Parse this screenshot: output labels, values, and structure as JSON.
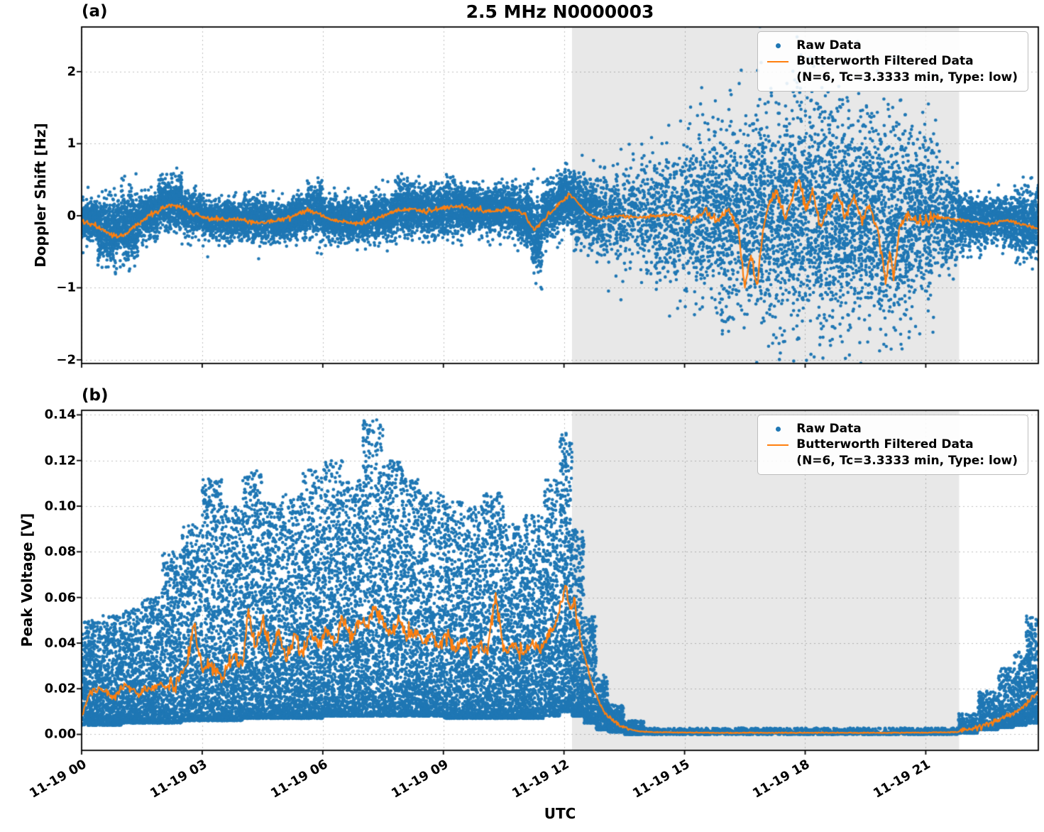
{
  "figure": {
    "title": "2.5 MHz N0000003",
    "panel_a_label": "(a)",
    "panel_b_label": "(b)",
    "x_label": "UTC"
  },
  "legend": {
    "raw_label": "Raw Data",
    "filtered_label": "Butterworth Filtered Data",
    "filtered_sublabel": "(N=6, Tc=3.3333 min, Type: low)"
  },
  "colors": {
    "raw": "#1f77b4",
    "filtered": "#ff7f0e",
    "shade": "#e8e8e8",
    "axes": "#000000"
  },
  "shaded_region": {
    "t_start": 12.2,
    "t_end": 21.83,
    "color": "#e8e8e8"
  },
  "x_axis": {
    "label": "UTC",
    "xlim": [
      0,
      23.8
    ],
    "ticks": [
      0,
      3,
      6,
      9,
      12,
      15,
      18,
      21
    ],
    "tick_labels": [
      "11-19 00",
      "11-19 03",
      "11-19 06",
      "11-19 09",
      "11-19 12",
      "11-19 15",
      "11-19 18",
      "11-19 21"
    ]
  },
  "chart_data": [
    {
      "id": "doppler_shift",
      "type": "scatter",
      "panel": "a",
      "ylabel": "Doppler Shift [Hz]",
      "ylim": [
        -2.05,
        2.62
      ],
      "yticks": [
        -2,
        -1,
        0,
        1,
        2
      ],
      "ytick_labels": [
        "−2",
        "−1",
        "0",
        "1",
        "2"
      ],
      "series": [
        {
          "name": "Raw Data",
          "style": "scatter"
        },
        {
          "name": "Butterworth Filtered Data (N=6, Tc=3.3333 min, Type: low)",
          "style": "line"
        }
      ],
      "raw_distribution": "normal",
      "raw_point_segments": [
        [
          0,
          0.4,
          -0.05,
          0.13,
          400
        ],
        [
          0.4,
          0.9,
          -0.2,
          0.22,
          450
        ],
        [
          0.9,
          1.4,
          -0.15,
          0.25,
          450
        ],
        [
          1.4,
          1.9,
          0,
          0.15,
          400
        ],
        [
          1.9,
          2.5,
          0.18,
          0.18,
          500
        ],
        [
          2.5,
          3,
          0.03,
          0.13,
          400
        ],
        [
          3,
          4,
          -0.05,
          0.13,
          700
        ],
        [
          4,
          4.6,
          -0.05,
          0.15,
          450
        ],
        [
          4.6,
          5.2,
          -0.08,
          0.13,
          450
        ],
        [
          5.2,
          5.6,
          0,
          0.13,
          320
        ],
        [
          5.6,
          6,
          0.08,
          0.17,
          320
        ],
        [
          6,
          6.6,
          -0.05,
          0.14,
          450
        ],
        [
          6.6,
          7.2,
          -0.08,
          0.15,
          450
        ],
        [
          7.2,
          7.8,
          0,
          0.16,
          450
        ],
        [
          7.8,
          8.4,
          0.1,
          0.18,
          500
        ],
        [
          8.4,
          9,
          0.08,
          0.17,
          500
        ],
        [
          9,
          9.6,
          0.12,
          0.17,
          500
        ],
        [
          9.6,
          10.2,
          0.08,
          0.16,
          500
        ],
        [
          10.2,
          10.8,
          0.1,
          0.16,
          500
        ],
        [
          10.8,
          11.2,
          0,
          0.19,
          330
        ],
        [
          11.2,
          11.45,
          -0.3,
          0.26,
          220
        ],
        [
          11.45,
          11.8,
          0.05,
          0.18,
          260
        ],
        [
          11.8,
          12.3,
          0.2,
          0.2,
          450
        ],
        [
          12.3,
          12.8,
          0.1,
          0.24,
          380
        ],
        [
          12.8,
          13.4,
          0,
          0.3,
          260
        ],
        [
          13.4,
          14.2,
          0,
          0.36,
          260
        ],
        [
          14.2,
          15,
          0,
          0.46,
          320
        ],
        [
          15,
          15.8,
          0,
          0.55,
          420
        ],
        [
          15.8,
          16.6,
          -0.08,
          0.62,
          470
        ],
        [
          16.6,
          17.4,
          0,
          0.7,
          520
        ],
        [
          17.4,
          18.2,
          0.08,
          0.76,
          560
        ],
        [
          18.2,
          19,
          0,
          0.8,
          560
        ],
        [
          19,
          19.8,
          0,
          0.76,
          560
        ],
        [
          19.8,
          20.6,
          -0.08,
          0.7,
          520
        ],
        [
          20.6,
          21.3,
          0,
          0.55,
          420
        ],
        [
          21.3,
          21.8,
          -0.05,
          0.36,
          260
        ],
        [
          21.8,
          22.4,
          -0.1,
          0.19,
          400
        ],
        [
          22.4,
          23.2,
          -0.05,
          0.16,
          500
        ],
        [
          23.2,
          23.8,
          -0.1,
          0.22,
          450
        ]
      ],
      "filtered_line": [
        [
          0,
          -0.08
        ],
        [
          0.3,
          -0.12
        ],
        [
          0.6,
          -0.22
        ],
        [
          0.9,
          -0.3
        ],
        [
          1.1,
          -0.25
        ],
        [
          1.4,
          -0.1
        ],
        [
          1.7,
          0
        ],
        [
          2,
          0.1
        ],
        [
          2.2,
          0.15
        ],
        [
          2.5,
          0.12
        ],
        [
          2.8,
          0.02
        ],
        [
          3.2,
          -0.04
        ],
        [
          3.6,
          -0.06
        ],
        [
          4,
          -0.05
        ],
        [
          4.4,
          -0.1
        ],
        [
          4.8,
          -0.08
        ],
        [
          5.2,
          -0.02
        ],
        [
          5.6,
          0.08
        ],
        [
          5.9,
          0.03
        ],
        [
          6.2,
          -0.06
        ],
        [
          6.6,
          -0.1
        ],
        [
          7,
          -0.1
        ],
        [
          7.4,
          -0.02
        ],
        [
          7.8,
          0.06
        ],
        [
          8.2,
          0.1
        ],
        [
          8.6,
          0.06
        ],
        [
          9,
          0.1
        ],
        [
          9.4,
          0.14
        ],
        [
          9.8,
          0.08
        ],
        [
          10.2,
          0.06
        ],
        [
          10.6,
          0.1
        ],
        [
          11,
          0.04
        ],
        [
          11.25,
          -0.2
        ],
        [
          11.5,
          -0.05
        ],
        [
          11.8,
          0.12
        ],
        [
          12,
          0.22
        ],
        [
          12.15,
          0.3
        ],
        [
          12.35,
          0.18
        ],
        [
          12.6,
          0.02
        ],
        [
          12.9,
          -0.04
        ],
        [
          13.3,
          0
        ],
        [
          13.8,
          -0.02
        ],
        [
          14.3,
          0
        ],
        [
          14.8,
          0.02
        ],
        [
          15.2,
          -0.06
        ],
        [
          15.5,
          0.08
        ],
        [
          15.8,
          -0.08
        ],
        [
          16.1,
          0.1
        ],
        [
          16.35,
          -0.25
        ],
        [
          16.5,
          -1
        ],
        [
          16.65,
          -0.55
        ],
        [
          16.8,
          -0.95
        ],
        [
          16.95,
          -0.2
        ],
        [
          17.1,
          0.15
        ],
        [
          17.3,
          0.35
        ],
        [
          17.5,
          -0.05
        ],
        [
          17.7,
          0.3
        ],
        [
          17.85,
          0.5
        ],
        [
          18,
          0.1
        ],
        [
          18.2,
          0.3
        ],
        [
          18.4,
          -0.15
        ],
        [
          18.6,
          0.15
        ],
        [
          18.8,
          0.3
        ],
        [
          19,
          0
        ],
        [
          19.2,
          0.25
        ],
        [
          19.4,
          -0.05
        ],
        [
          19.6,
          0.15
        ],
        [
          19.75,
          -0.1
        ],
        [
          19.9,
          -0.5
        ],
        [
          20,
          -0.95
        ],
        [
          20.1,
          -0.5
        ],
        [
          20.2,
          -0.9
        ],
        [
          20.35,
          -0.15
        ],
        [
          20.5,
          0
        ],
        [
          20.8,
          -0.08
        ],
        [
          21.1,
          -0.05
        ],
        [
          21.4,
          -0.02
        ],
        [
          21.8,
          -0.05
        ],
        [
          22.2,
          -0.08
        ],
        [
          22.6,
          -0.12
        ],
        [
          23,
          -0.06
        ],
        [
          23.4,
          -0.12
        ],
        [
          23.8,
          -0.18
        ]
      ],
      "filtered_noise": [
        [
          0,
          12.2,
          0.03
        ],
        [
          12.2,
          15,
          0.02
        ],
        [
          15,
          16.3,
          0.05
        ],
        [
          16.3,
          21.3,
          0.07
        ],
        [
          21.3,
          23.8,
          0.02
        ]
      ]
    },
    {
      "id": "peak_voltage",
      "type": "scatter",
      "panel": "b",
      "ylabel": "Peak Voltage [V]",
      "ylim": [
        -0.007,
        0.142
      ],
      "yticks": [
        0,
        0.02,
        0.04,
        0.06,
        0.08,
        0.1,
        0.12,
        0.14
      ],
      "ytick_labels": [
        "0.00",
        "0.02",
        "0.04",
        "0.06",
        "0.08",
        "0.10",
        "0.12",
        "0.14"
      ],
      "series": [
        {
          "name": "Raw Data",
          "style": "scatter"
        },
        {
          "name": "Butterworth Filtered Data (N=6, Tc=3.3333 min, Type: low)",
          "style": "line"
        }
      ],
      "raw_distribution": "skew_low",
      "raw_point_segments": [
        [
          0,
          0.5,
          0.004,
          0.05,
          550
        ],
        [
          0.5,
          1,
          0.004,
          0.052,
          550
        ],
        [
          1,
          1.5,
          0.005,
          0.055,
          550
        ],
        [
          1.5,
          2,
          0.005,
          0.06,
          550
        ],
        [
          2,
          2.5,
          0.005,
          0.08,
          600
        ],
        [
          2.5,
          3,
          0.006,
          0.092,
          620
        ],
        [
          3,
          3.5,
          0.006,
          0.112,
          650
        ],
        [
          3.5,
          4,
          0.006,
          0.1,
          650
        ],
        [
          4,
          4.5,
          0.007,
          0.116,
          680
        ],
        [
          4.5,
          5,
          0.007,
          0.102,
          680
        ],
        [
          5,
          5.5,
          0.007,
          0.106,
          680
        ],
        [
          5.5,
          6,
          0.007,
          0.116,
          680
        ],
        [
          6,
          6.5,
          0.008,
          0.12,
          680
        ],
        [
          6.5,
          7,
          0.008,
          0.112,
          680
        ],
        [
          7,
          7.5,
          0.008,
          0.138,
          680
        ],
        [
          7.5,
          8,
          0.008,
          0.12,
          680
        ],
        [
          8,
          8.5,
          0.008,
          0.112,
          680
        ],
        [
          8.5,
          9,
          0.008,
          0.106,
          680
        ],
        [
          9,
          9.5,
          0.007,
          0.102,
          660
        ],
        [
          9.5,
          10,
          0.007,
          0.1,
          660
        ],
        [
          10,
          10.5,
          0.007,
          0.106,
          660
        ],
        [
          10.5,
          11,
          0.007,
          0.092,
          660
        ],
        [
          11,
          11.5,
          0.007,
          0.096,
          660
        ],
        [
          11.5,
          11.9,
          0.008,
          0.112,
          560
        ],
        [
          11.9,
          12.2,
          0.01,
          0.133,
          520
        ],
        [
          12.2,
          12.5,
          0.008,
          0.09,
          420
        ],
        [
          12.5,
          12.8,
          0.005,
          0.052,
          340
        ],
        [
          12.8,
          13.1,
          0.002,
          0.026,
          280
        ],
        [
          13.1,
          13.5,
          0.001,
          0.013,
          280
        ],
        [
          13.5,
          14,
          0,
          0.006,
          280
        ],
        [
          14,
          21.8,
          0,
          0.0028,
          1400
        ],
        [
          21.8,
          22.3,
          0.0005,
          0.009,
          240
        ],
        [
          22.3,
          22.8,
          0.002,
          0.019,
          300
        ],
        [
          22.8,
          23.2,
          0.003,
          0.029,
          300
        ],
        [
          23.2,
          23.5,
          0.004,
          0.036,
          300
        ],
        [
          23.5,
          23.8,
          0.005,
          0.052,
          360
        ]
      ],
      "filtered_line": [
        [
          0,
          0.008
        ],
        [
          0.2,
          0.018
        ],
        [
          0.5,
          0.02
        ],
        [
          0.8,
          0.016
        ],
        [
          1.1,
          0.022
        ],
        [
          1.4,
          0.018
        ],
        [
          1.7,
          0.02
        ],
        [
          2,
          0.022
        ],
        [
          2.3,
          0.02
        ],
        [
          2.6,
          0.03
        ],
        [
          2.8,
          0.048
        ],
        [
          3,
          0.028
        ],
        [
          3.2,
          0.03
        ],
        [
          3.5,
          0.025
        ],
        [
          3.8,
          0.035
        ],
        [
          4,
          0.03
        ],
        [
          4.15,
          0.055
        ],
        [
          4.3,
          0.038
        ],
        [
          4.5,
          0.05
        ],
        [
          4.7,
          0.034
        ],
        [
          4.9,
          0.046
        ],
        [
          5.1,
          0.032
        ],
        [
          5.3,
          0.044
        ],
        [
          5.5,
          0.035
        ],
        [
          5.7,
          0.046
        ],
        [
          5.9,
          0.038
        ],
        [
          6.1,
          0.046
        ],
        [
          6.3,
          0.04
        ],
        [
          6.5,
          0.05
        ],
        [
          6.7,
          0.042
        ],
        [
          6.9,
          0.05
        ],
        [
          7.1,
          0.048
        ],
        [
          7.3,
          0.056
        ],
        [
          7.5,
          0.05
        ],
        [
          7.7,
          0.044
        ],
        [
          7.9,
          0.05
        ],
        [
          8.1,
          0.042
        ],
        [
          8.3,
          0.046
        ],
        [
          8.5,
          0.04
        ],
        [
          8.7,
          0.044
        ],
        [
          8.9,
          0.038
        ],
        [
          9.1,
          0.044
        ],
        [
          9.3,
          0.036
        ],
        [
          9.5,
          0.042
        ],
        [
          9.7,
          0.036
        ],
        [
          9.9,
          0.04
        ],
        [
          10.1,
          0.035
        ],
        [
          10.3,
          0.062
        ],
        [
          10.45,
          0.042
        ],
        [
          10.6,
          0.036
        ],
        [
          10.8,
          0.04
        ],
        [
          11,
          0.035
        ],
        [
          11.2,
          0.04
        ],
        [
          11.4,
          0.036
        ],
        [
          11.6,
          0.042
        ],
        [
          11.8,
          0.05
        ],
        [
          11.95,
          0.058
        ],
        [
          12.05,
          0.065
        ],
        [
          12.15,
          0.055
        ],
        [
          12.25,
          0.06
        ],
        [
          12.4,
          0.042
        ],
        [
          12.55,
          0.032
        ],
        [
          12.7,
          0.022
        ],
        [
          12.85,
          0.015
        ],
        [
          13,
          0.01
        ],
        [
          13.2,
          0.006
        ],
        [
          13.5,
          0.003
        ],
        [
          13.8,
          0.0015
        ],
        [
          14.2,
          0.001
        ],
        [
          15,
          0.0008
        ],
        [
          16,
          0.0007
        ],
        [
          17,
          0.0007
        ],
        [
          18,
          0.0007
        ],
        [
          19,
          0.0007
        ],
        [
          20,
          0.0007
        ],
        [
          21,
          0.0008
        ],
        [
          21.8,
          0.001
        ],
        [
          22.2,
          0.0025
        ],
        [
          22.6,
          0.005
        ],
        [
          23,
          0.008
        ],
        [
          23.3,
          0.011
        ],
        [
          23.6,
          0.015
        ],
        [
          23.8,
          0.019
        ]
      ],
      "filtered_noise": [
        [
          0,
          2,
          0.0015
        ],
        [
          2,
          12.4,
          0.003
        ],
        [
          12.4,
          13.6,
          0.0008
        ],
        [
          13.6,
          21.8,
          0.00015
        ],
        [
          21.8,
          23.8,
          0.001
        ]
      ]
    }
  ]
}
